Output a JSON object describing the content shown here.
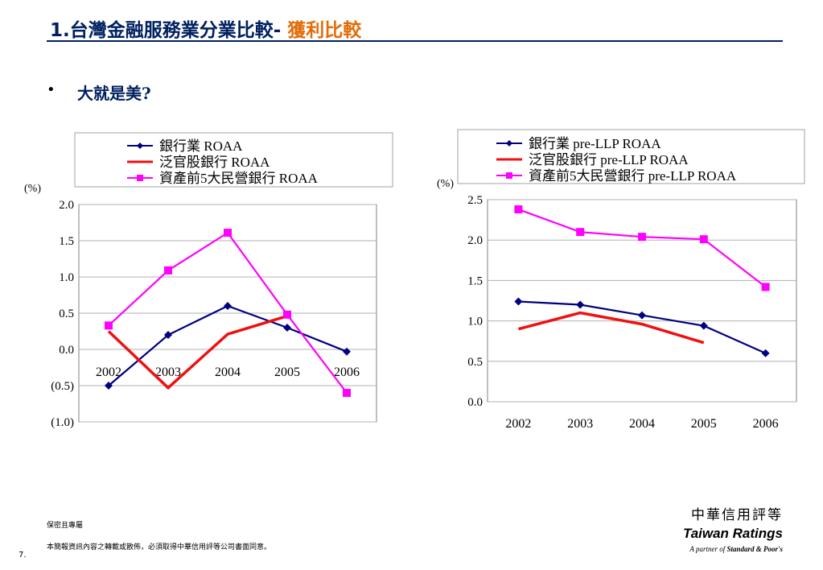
{
  "slide": {
    "title_main": "1.台灣金融服務業分業比較-",
    "title_highlight": " 獲利比較",
    "bullet": "大就是美?"
  },
  "footer": {
    "confidential": "保密且專屬",
    "note": "本簡報資訊內容之轉載或散佈，必須取得中華信用評等公司書面同意。",
    "page_number": "7."
  },
  "logo": {
    "chinese": "中華信用評等",
    "english": "Taiwan Ratings",
    "tagline_prefix": "A partner of",
    "tagline_brand": "Standard & Poor's"
  },
  "colors": {
    "banks": "#000080",
    "state_owned": "#ee1111",
    "top5_private": "#ff00ff",
    "title_dark": "#002060",
    "title_accent": "#e36c09"
  },
  "chart_data": [
    {
      "type": "line",
      "unit_label": "(%)",
      "x": [
        "2002",
        "2003",
        "2004",
        "2005",
        "2006"
      ],
      "ylim": [
        -1.0,
        2.0
      ],
      "yticks": [
        2.0,
        1.5,
        1.0,
        0.5,
        0.0,
        -0.5,
        -1.0
      ],
      "ytick_labels": [
        "2.0",
        "1.5",
        "1.0",
        "0.5",
        "0.0",
        "(0.5)",
        "(1.0)"
      ],
      "grid": true,
      "legend_position": "top",
      "series": [
        {
          "name": "銀行業 ROAA",
          "marker": "diamond",
          "color_key": "banks",
          "values": [
            -0.5,
            0.2,
            0.6,
            0.3,
            -0.03
          ]
        },
        {
          "name": "泛官股銀行 ROAA",
          "marker": "none",
          "color_key": "state_owned",
          "values": [
            0.25,
            -0.53,
            0.21,
            0.46,
            null
          ]
        },
        {
          "name": "資產前5大民營銀行 ROAA",
          "marker": "square",
          "color_key": "top5_private",
          "values": [
            0.33,
            1.09,
            1.61,
            0.48,
            -0.6
          ]
        }
      ]
    },
    {
      "type": "line",
      "unit_label": "(%)",
      "x": [
        "2002",
        "2003",
        "2004",
        "2005",
        "2006"
      ],
      "ylim": [
        0.0,
        2.5
      ],
      "yticks": [
        2.5,
        2.0,
        1.5,
        1.0,
        0.5,
        0.0
      ],
      "ytick_labels": [
        "2.5",
        "2.0",
        "1.5",
        "1.0",
        "0.5",
        "0.0"
      ],
      "grid": true,
      "legend_position": "top",
      "series": [
        {
          "name": "銀行業 pre-LLP ROAA",
          "marker": "diamond",
          "color_key": "banks",
          "values": [
            1.24,
            1.2,
            1.07,
            0.94,
            0.6
          ]
        },
        {
          "name": "泛官股銀行 pre-LLP ROAA",
          "marker": "none",
          "color_key": "state_owned",
          "values": [
            0.9,
            1.1,
            0.96,
            0.73,
            null
          ]
        },
        {
          "name": "資產前5大民營銀行 pre-LLP ROAA",
          "marker": "square",
          "color_key": "top5_private",
          "values": [
            2.38,
            2.1,
            2.04,
            2.01,
            1.42
          ]
        }
      ]
    }
  ]
}
